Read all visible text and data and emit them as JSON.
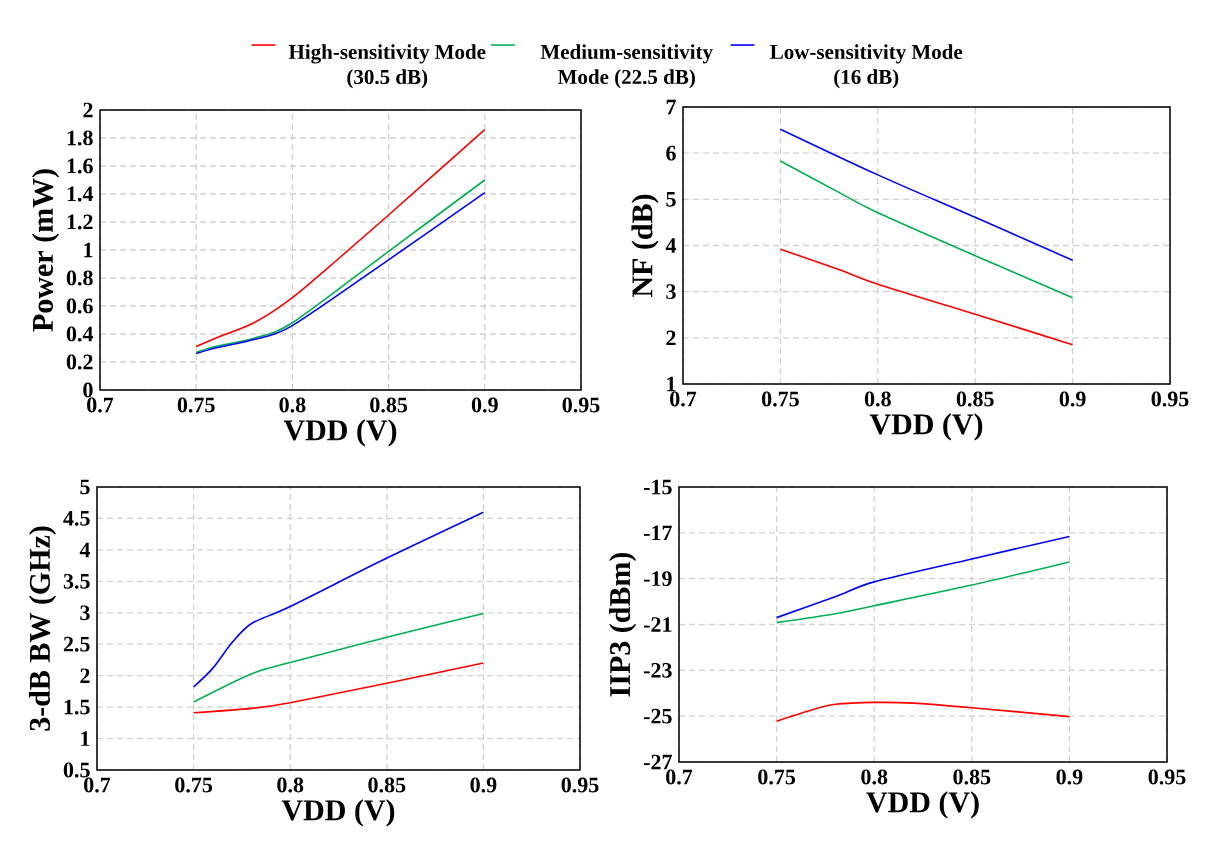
{
  "chart_data": [
    {
      "type": "line",
      "xlabel": "VDD (V)",
      "ylabel": "Power  (mW)",
      "xlim": [
        0.7,
        0.95
      ],
      "xticks": [
        0.7,
        0.75,
        0.8,
        0.85,
        0.9,
        0.95
      ],
      "ylim": [
        0,
        2
      ],
      "yticks": [
        0,
        0.2,
        0.4,
        0.6,
        0.8,
        1,
        1.2,
        1.4,
        1.6,
        1.8,
        2
      ],
      "grid": true,
      "legend": "top",
      "series": [
        {
          "name": "High-sensitivity Mode (30.5 dB)",
          "color": "#ff0000",
          "x": [
            0.75,
            0.76,
            0.78,
            0.8,
            0.825,
            0.85,
            0.9
          ],
          "values": [
            0.31,
            0.37,
            0.48,
            0.66,
            0.95,
            1.25,
            1.86
          ]
        },
        {
          "name": "Medium-sensitivity Mode (22.5 dB)",
          "color": "#00b050",
          "x": [
            0.75,
            0.76,
            0.78,
            0.8,
            0.85,
            0.9
          ],
          "values": [
            0.27,
            0.31,
            0.37,
            0.48,
            0.99,
            1.5
          ]
        },
        {
          "name": "Low-sensitivity Mode (16 dB)",
          "color": "#0000ff",
          "x": [
            0.75,
            0.76,
            0.78,
            0.8,
            0.85,
            0.9
          ],
          "values": [
            0.26,
            0.3,
            0.36,
            0.46,
            0.93,
            1.41
          ]
        }
      ]
    },
    {
      "type": "line",
      "xlabel": "VDD (V)",
      "ylabel": "NF (dB)",
      "xlim": [
        0.7,
        0.95
      ],
      "xticks": [
        0.7,
        0.75,
        0.8,
        0.85,
        0.9,
        0.95
      ],
      "ylim": [
        1,
        7
      ],
      "yticks": [
        1,
        2,
        3,
        4,
        5,
        6,
        7
      ],
      "grid": true,
      "series": [
        {
          "color": "#ff0000",
          "x": [
            0.75,
            0.78,
            0.8,
            0.85,
            0.9
          ],
          "values": [
            3.92,
            3.48,
            3.16,
            2.51,
            1.85
          ]
        },
        {
          "color": "#00b050",
          "x": [
            0.75,
            0.78,
            0.8,
            0.85,
            0.9
          ],
          "values": [
            5.83,
            5.15,
            4.71,
            3.78,
            2.87
          ]
        },
        {
          "color": "#0000ff",
          "x": [
            0.75,
            0.8,
            0.85,
            0.9
          ],
          "values": [
            6.52,
            5.53,
            4.61,
            3.68
          ]
        }
      ]
    },
    {
      "type": "line",
      "xlabel": "VDD (V)",
      "ylabel": "3-dB BW (GHz)",
      "xlim": [
        0.7,
        0.95
      ],
      "xticks": [
        0.7,
        0.75,
        0.8,
        0.85,
        0.9,
        0.95
      ],
      "ylim": [
        0.5,
        5
      ],
      "yticks": [
        0.5,
        1,
        1.5,
        2,
        2.5,
        3,
        3.5,
        4,
        4.5,
        5
      ],
      "grid": true,
      "series": [
        {
          "color": "#ff0000",
          "x": [
            0.75,
            0.78,
            0.8,
            0.85,
            0.9
          ],
          "values": [
            1.41,
            1.48,
            1.57,
            1.88,
            2.2
          ]
        },
        {
          "color": "#00b050",
          "x": [
            0.75,
            0.78,
            0.8,
            0.85,
            0.9
          ],
          "values": [
            1.58,
            2.03,
            2.21,
            2.61,
            2.99
          ]
        },
        {
          "color": "#0000ff",
          "x": [
            0.75,
            0.76,
            0.77,
            0.78,
            0.8,
            0.85,
            0.9
          ],
          "values": [
            1.82,
            2.12,
            2.53,
            2.83,
            3.1,
            3.87,
            4.6
          ]
        }
      ]
    },
    {
      "type": "line",
      "xlabel": "VDD (V)",
      "ylabel": "IIP3 (dBm)",
      "xlim": [
        0.7,
        0.95
      ],
      "xticks": [
        0.7,
        0.75,
        0.8,
        0.85,
        0.9,
        0.95
      ],
      "ylim": [
        -27,
        -15
      ],
      "yticks": [
        -27,
        -25,
        -23,
        -21,
        -19,
        -17,
        -15
      ],
      "grid": true,
      "series": [
        {
          "color": "#ff0000",
          "x": [
            0.75,
            0.77,
            0.78,
            0.8,
            0.82,
            0.85,
            0.9
          ],
          "values": [
            -25.22,
            -24.68,
            -24.48,
            -24.4,
            -24.43,
            -24.63,
            -25.02
          ]
        },
        {
          "color": "#00b050",
          "x": [
            0.75,
            0.78,
            0.8,
            0.85,
            0.9
          ],
          "values": [
            -20.92,
            -20.53,
            -20.18,
            -19.28,
            -18.27
          ]
        },
        {
          "color": "#0000ff",
          "x": [
            0.75,
            0.78,
            0.8,
            0.85,
            0.9
          ],
          "values": [
            -20.7,
            -19.79,
            -19.14,
            -18.14,
            -17.16
          ]
        }
      ]
    }
  ]
}
